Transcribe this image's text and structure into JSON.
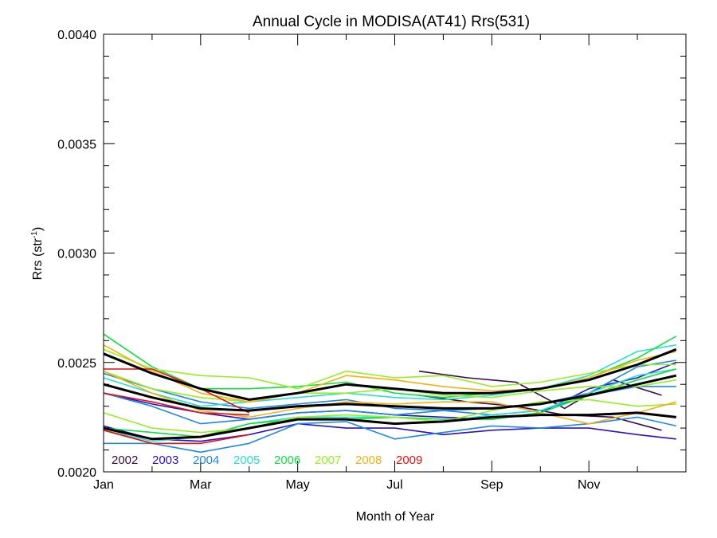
{
  "chart_data": {
    "type": "line",
    "title": "Annual Cycle in MODISA(AT41) Rrs(531)",
    "xlabel": "Month of Year",
    "ylabel": "Rrs (str",
    "ylabel_sup": "-1",
    "ylabel_tail": ")",
    "xlim": [
      0,
      12
    ],
    "ylim": [
      0.002,
      0.004
    ],
    "x_ticks": [
      {
        "value": 0.0,
        "label": "Jan"
      },
      {
        "value": 2.0,
        "label": "Mar"
      },
      {
        "value": 4.0,
        "label": "May"
      },
      {
        "value": 6.0,
        "label": "Jul"
      },
      {
        "value": 8.0,
        "label": "Sep"
      },
      {
        "value": 10.0,
        "label": "Nov"
      }
    ],
    "x_minor_ticks": [
      1,
      3,
      5,
      7,
      9,
      11
    ],
    "y_ticks": [
      {
        "value": 0.002,
        "label": "0.0020"
      },
      {
        "value": 0.0025,
        "label": "0.0025"
      },
      {
        "value": 0.003,
        "label": "0.0030"
      },
      {
        "value": 0.0035,
        "label": "0.0035"
      },
      {
        "value": 0.004,
        "label": "0.0040"
      }
    ],
    "y_minor_step": 0.0001,
    "grid": false,
    "legend_position": "bottom-left",
    "series": [
      {
        "name": "2002",
        "color": "#3a0a4a",
        "lines": [
          [
            [
              6.5,
              0.00246
            ],
            [
              7.5,
              0.00243
            ],
            [
              8.5,
              0.00241
            ],
            [
              9.5,
              0.00229
            ],
            [
              10.5,
              0.00242
            ],
            [
              11.5,
              0.00235
            ]
          ],
          [
            [
              6.5,
              0.00235
            ],
            [
              7.5,
              0.00232
            ],
            [
              8.5,
              0.0023
            ],
            [
              9.5,
              0.00226
            ],
            [
              10.5,
              0.00225
            ],
            [
              11.5,
              0.00219
            ]
          ]
        ]
      },
      {
        "name": "2003",
        "color": "#2a10c8",
        "lines": [
          [
            [
              0.0,
              0.00236
            ],
            [
              1.0,
              0.00231
            ],
            [
              2.0,
              0.00227
            ],
            [
              3.0,
              0.00224
            ],
            [
              4.0,
              0.00227
            ],
            [
              5.0,
              0.00228
            ],
            [
              6.0,
              0.00226
            ],
            [
              7.0,
              0.00225
            ],
            [
              8.0,
              0.00224
            ],
            [
              9.0,
              0.00227
            ],
            [
              10.0,
              0.00238
            ],
            [
              11.0,
              0.00243
            ],
            [
              11.8,
              0.0025
            ]
          ],
          [
            [
              0.0,
              0.00221
            ],
            [
              1.0,
              0.00215
            ],
            [
              2.0,
              0.00214
            ],
            [
              3.0,
              0.00217
            ],
            [
              4.0,
              0.00222
            ],
            [
              5.0,
              0.0022
            ],
            [
              6.0,
              0.0022
            ],
            [
              7.0,
              0.00217
            ],
            [
              8.0,
              0.00219
            ],
            [
              9.0,
              0.0022
            ],
            [
              10.0,
              0.0022
            ],
            [
              11.0,
              0.00217
            ],
            [
              11.8,
              0.00215
            ]
          ]
        ]
      },
      {
        "name": "2004",
        "color": "#1e88e8",
        "lines": [
          [
            [
              0.0,
              0.00213
            ],
            [
              0.5,
              0.00213
            ],
            [
              1.0,
              0.00213
            ],
            [
              2.0,
              0.00209
            ],
            [
              3.0,
              0.00213
            ],
            [
              4.0,
              0.00222
            ],
            [
              5.0,
              0.00223
            ],
            [
              6.0,
              0.00215
            ],
            [
              7.0,
              0.00218
            ],
            [
              8.0,
              0.00221
            ],
            [
              9.0,
              0.0022
            ],
            [
              10.0,
              0.00222
            ],
            [
              11.0,
              0.00225
            ],
            [
              11.8,
              0.00221
            ]
          ],
          [
            [
              0.0,
              0.00245
            ],
            [
              1.0,
              0.00238
            ],
            [
              2.0,
              0.00232
            ],
            [
              3.0,
              0.00229
            ],
            [
              4.0,
              0.00231
            ],
            [
              5.0,
              0.00233
            ],
            [
              6.0,
              0.00229
            ],
            [
              7.0,
              0.00228
            ],
            [
              8.0,
              0.00226
            ],
            [
              9.0,
              0.00228
            ],
            [
              10.0,
              0.00235
            ],
            [
              11.0,
              0.00239
            ],
            [
              11.8,
              0.00239
            ]
          ],
          [
            [
              0.0,
              0.00236
            ],
            [
              1.0,
              0.0023
            ],
            [
              2.0,
              0.00222
            ],
            [
              3.0,
              0.00224
            ],
            [
              4.0,
              0.00227
            ],
            [
              5.0,
              0.00228
            ],
            [
              6.0,
              0.00226
            ],
            [
              7.0,
              0.00228
            ],
            [
              8.0,
              0.00229
            ],
            [
              9.0,
              0.00231
            ],
            [
              10.0,
              0.00236
            ],
            [
              11.0,
              0.00248
            ],
            [
              11.8,
              0.00251
            ]
          ]
        ]
      },
      {
        "name": "2005",
        "color": "#28e0d0",
        "lines": [
          [
            [
              0.0,
              0.00243
            ],
            [
              1.0,
              0.00236
            ],
            [
              2.0,
              0.0023
            ],
            [
              3.0,
              0.00232
            ],
            [
              4.0,
              0.00234
            ],
            [
              5.0,
              0.00236
            ],
            [
              6.0,
              0.00234
            ],
            [
              7.0,
              0.00233
            ],
            [
              8.0,
              0.00235
            ],
            [
              9.0,
              0.00238
            ],
            [
              10.0,
              0.00244
            ],
            [
              11.0,
              0.00255
            ],
            [
              11.8,
              0.00258
            ]
          ],
          [
            [
              0.0,
              0.00219
            ],
            [
              1.0,
              0.00214
            ],
            [
              2.0,
              0.00216
            ],
            [
              3.0,
              0.00222
            ],
            [
              4.0,
              0.00225
            ],
            [
              5.0,
              0.00225
            ],
            [
              6.0,
              0.00225
            ],
            [
              7.0,
              0.00223
            ],
            [
              8.0,
              0.00226
            ],
            [
              9.0,
              0.00228
            ],
            [
              10.0,
              0.00236
            ],
            [
              11.0,
              0.00244
            ],
            [
              11.8,
              0.00247
            ]
          ]
        ]
      },
      {
        "name": "2006",
        "color": "#10e040",
        "lines": [
          [
            [
              0.0,
              0.00263
            ],
            [
              1.0,
              0.00248
            ],
            [
              2.0,
              0.00238
            ],
            [
              3.0,
              0.00238
            ],
            [
              4.0,
              0.00239
            ],
            [
              5.0,
              0.00241
            ],
            [
              6.0,
              0.00236
            ],
            [
              7.0,
              0.00234
            ],
            [
              8.0,
              0.00236
            ],
            [
              9.0,
              0.00238
            ],
            [
              10.0,
              0.00243
            ],
            [
              11.0,
              0.00252
            ],
            [
              11.8,
              0.00262
            ]
          ],
          [
            [
              0.0,
              0.0022
            ],
            [
              1.0,
              0.00218
            ],
            [
              2.0,
              0.00216
            ],
            [
              3.0,
              0.00222
            ],
            [
              4.0,
              0.00224
            ],
            [
              5.0,
              0.00224
            ],
            [
              6.0,
              0.00225
            ],
            [
              7.0,
              0.00224
            ],
            [
              8.0,
              0.00224
            ],
            [
              9.0,
              0.00227
            ],
            [
              10.0,
              0.00235
            ],
            [
              11.0,
              0.00242
            ],
            [
              11.8,
              0.00247
            ]
          ]
        ]
      },
      {
        "name": "2007",
        "color": "#98ee20",
        "lines": [
          [
            [
              0.0,
              0.00256
            ],
            [
              1.0,
              0.00247
            ],
            [
              2.0,
              0.00244
            ],
            [
              3.0,
              0.00243
            ],
            [
              4.0,
              0.00238
            ],
            [
              5.0,
              0.00246
            ],
            [
              6.0,
              0.00243
            ],
            [
              7.0,
              0.00244
            ],
            [
              8.0,
              0.00239
            ],
            [
              9.0,
              0.00241
            ],
            [
              10.0,
              0.00245
            ],
            [
              11.0,
              0.00249
            ],
            [
              11.8,
              0.00249
            ]
          ],
          [
            [
              0.0,
              0.00227
            ],
            [
              1.0,
              0.0022
            ],
            [
              2.0,
              0.00218
            ],
            [
              3.0,
              0.0022
            ],
            [
              4.0,
              0.00225
            ],
            [
              5.0,
              0.00226
            ],
            [
              6.0,
              0.00225
            ],
            [
              7.0,
              0.00223
            ],
            [
              8.0,
              0.00228
            ],
            [
              9.0,
              0.00232
            ],
            [
              10.0,
              0.00233
            ],
            [
              11.0,
              0.0023
            ],
            [
              11.8,
              0.00231
            ]
          ],
          [
            [
              0.0,
              0.00246
            ],
            [
              1.0,
              0.00238
            ],
            [
              2.0,
              0.00234
            ],
            [
              3.0,
              0.00232
            ],
            [
              4.0,
              0.00236
            ],
            [
              5.0,
              0.00236
            ],
            [
              6.0,
              0.00238
            ],
            [
              7.0,
              0.00235
            ],
            [
              8.0,
              0.00234
            ],
            [
              9.0,
              0.00237
            ],
            [
              10.0,
              0.00239
            ],
            [
              11.0,
              0.00239
            ],
            [
              11.8,
              0.00242
            ]
          ]
        ]
      },
      {
        "name": "2008",
        "color": "#f8b010",
        "lines": [
          [
            [
              0.0,
              0.00258
            ],
            [
              1.0,
              0.00246
            ],
            [
              2.0,
              0.00236
            ],
            [
              3.0,
              0.00232
            ],
            [
              4.0,
              0.00236
            ],
            [
              5.0,
              0.00244
            ],
            [
              6.0,
              0.00242
            ],
            [
              7.0,
              0.00239
            ],
            [
              8.0,
              0.00237
            ],
            [
              9.0,
              0.00238
            ],
            [
              10.0,
              0.00243
            ],
            [
              11.0,
              0.00251
            ],
            [
              11.8,
              0.00255
            ]
          ],
          [
            [
              0.0,
              0.00246
            ],
            [
              1.0,
              0.00236
            ],
            [
              2.0,
              0.00228
            ],
            [
              3.0,
              0.00225
            ],
            [
              4.0,
              0.00229
            ],
            [
              5.0,
              0.00232
            ],
            [
              6.0,
              0.00231
            ],
            [
              7.0,
              0.00232
            ],
            [
              8.0,
              0.00232
            ],
            [
              9.0,
              0.00227
            ],
            [
              10.0,
              0.00222
            ],
            [
              11.0,
              0.00227
            ],
            [
              11.8,
              0.00232
            ]
          ]
        ]
      },
      {
        "name": "2009",
        "color": "#e81010",
        "lines": [
          [
            [
              0.0,
              0.00247
            ],
            [
              1.0,
              0.00247
            ],
            [
              2.0,
              0.00238
            ],
            [
              3.0,
              0.00227
            ]
          ],
          [
            [
              0.0,
              0.00236
            ],
            [
              1.0,
              0.00232
            ],
            [
              2.0,
              0.00227
            ],
            [
              3.0,
              0.00226
            ]
          ],
          [
            [
              0.0,
              0.00219
            ],
            [
              1.0,
              0.00213
            ],
            [
              2.0,
              0.00213
            ],
            [
              3.0,
              0.00217
            ]
          ]
        ]
      },
      {
        "name": "",
        "color": "#000000",
        "thick": true,
        "lines": [
          [
            [
              0.0,
              0.00254
            ],
            [
              1.0,
              0.00245
            ],
            [
              2.0,
              0.00238
            ],
            [
              3.0,
              0.00233
            ],
            [
              4.0,
              0.00236
            ],
            [
              5.0,
              0.0024
            ],
            [
              6.0,
              0.00238
            ],
            [
              7.0,
              0.00236
            ],
            [
              8.0,
              0.00236
            ],
            [
              9.0,
              0.00238
            ],
            [
              10.0,
              0.00242
            ],
            [
              11.0,
              0.00249
            ],
            [
              11.8,
              0.00256
            ]
          ],
          [
            [
              0.0,
              0.0024
            ],
            [
              1.0,
              0.00234
            ],
            [
              2.0,
              0.00229
            ],
            [
              3.0,
              0.00228
            ],
            [
              4.0,
              0.0023
            ],
            [
              5.0,
              0.00231
            ],
            [
              6.0,
              0.0023
            ],
            [
              7.0,
              0.00229
            ],
            [
              8.0,
              0.00229
            ],
            [
              9.0,
              0.00231
            ],
            [
              10.0,
              0.00235
            ],
            [
              11.0,
              0.0024
            ],
            [
              11.8,
              0.00244
            ]
          ],
          [
            [
              0.0,
              0.0022
            ],
            [
              1.0,
              0.00215
            ],
            [
              2.0,
              0.00216
            ],
            [
              3.0,
              0.0022
            ],
            [
              4.0,
              0.00224
            ],
            [
              5.0,
              0.00224
            ],
            [
              6.0,
              0.00222
            ],
            [
              7.0,
              0.00223
            ],
            [
              8.0,
              0.00225
            ],
            [
              9.0,
              0.00226
            ],
            [
              10.0,
              0.00226
            ],
            [
              11.0,
              0.00227
            ],
            [
              11.8,
              0.00225
            ]
          ]
        ]
      }
    ]
  }
}
